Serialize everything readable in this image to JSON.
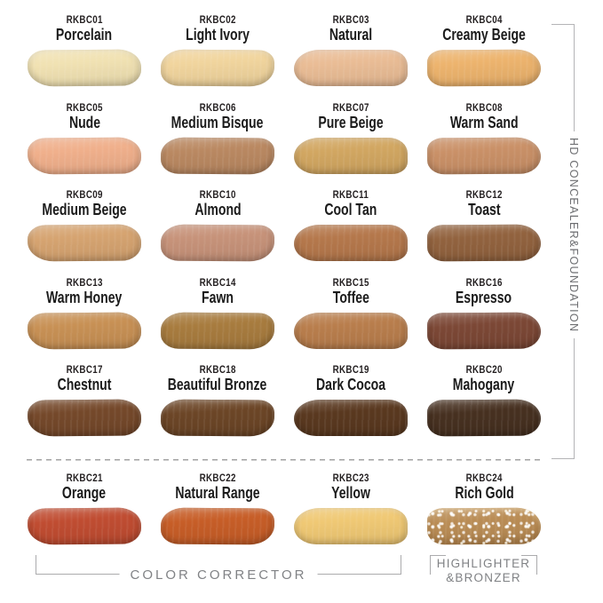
{
  "page": {
    "background": "#ffffff"
  },
  "side_label": {
    "text": "HD CONCEALER&FOUNDATION"
  },
  "bottom_labels": {
    "color_corrector": "COLOR CORRECTOR",
    "highlighter_line1": "HIGHLIGHTER",
    "highlighter_line2": "&BRONZER"
  },
  "colors": {
    "shade_text": "#231f20",
    "annotation_text": "#808285",
    "bracket_line": "#b0b0b2",
    "divider_dash": "#a2a2a2"
  },
  "groups": {
    "main_group_label": "HD CONCEALER&FOUNDATION",
    "corrector_group_label": "COLOR CORRECTOR",
    "highlighter_group_label": "HIGHLIGHTER &BRONZER"
  },
  "shades": [
    {
      "code": "RKBC01",
      "name": "Porcelain",
      "color": "#F1E2B3"
    },
    {
      "code": "RKBC02",
      "name": "Light Ivory",
      "color": "#F1D59E"
    },
    {
      "code": "RKBC03",
      "name": "Natural",
      "color": "#EABD96"
    },
    {
      "code": "RKBC04",
      "name": "Creamy Beige",
      "color": "#EDB46E"
    },
    {
      "code": "RKBC05",
      "name": "Nude",
      "color": "#F0B08C"
    },
    {
      "code": "RKBC06",
      "name": "Medium Bisque",
      "color": "#BA8962"
    },
    {
      "code": "RKBC07",
      "name": "Pure Beige",
      "color": "#D2A762"
    },
    {
      "code": "RKBC08",
      "name": "Warm Sand",
      "color": "#CA9168"
    },
    {
      "code": "RKBC09",
      "name": "Medium Beige",
      "color": "#D6A471"
    },
    {
      "code": "RKBC10",
      "name": "Almond",
      "color": "#C7937A"
    },
    {
      "code": "RKBC11",
      "name": "Cool Tan",
      "color": "#B5784C"
    },
    {
      "code": "RKBC12",
      "name": "Toast",
      "color": "#92633F"
    },
    {
      "code": "RKBC13",
      "name": "Warm Honey",
      "color": "#C89155"
    },
    {
      "code": "RKBC14",
      "name": "Fawn",
      "color": "#A87C3F"
    },
    {
      "code": "RKBC15",
      "name": "Toffee",
      "color": "#B97E4D"
    },
    {
      "code": "RKBC16",
      "name": "Espresso",
      "color": "#7C4836"
    },
    {
      "code": "RKBC17",
      "name": "Chestnut",
      "color": "#75492B"
    },
    {
      "code": "RKBC18",
      "name": "Beautiful Bronze",
      "color": "#6C4627"
    },
    {
      "code": "RKBC19",
      "name": "Dark Cocoa",
      "color": "#5A3920"
    },
    {
      "code": "RKBC20",
      "name": "Mahogany",
      "color": "#473121"
    },
    {
      "code": "RKBC21",
      "name": "Orange",
      "color": "#C04D32"
    },
    {
      "code": "RKBC22",
      "name": "Natural Range",
      "color": "#C75E28"
    },
    {
      "code": "RKBC23",
      "name": "Yellow",
      "color": "#F0C975"
    },
    {
      "code": "RKBC24",
      "name": "Rich Gold",
      "color": "#BA8D56",
      "sparkle": true
    }
  ]
}
